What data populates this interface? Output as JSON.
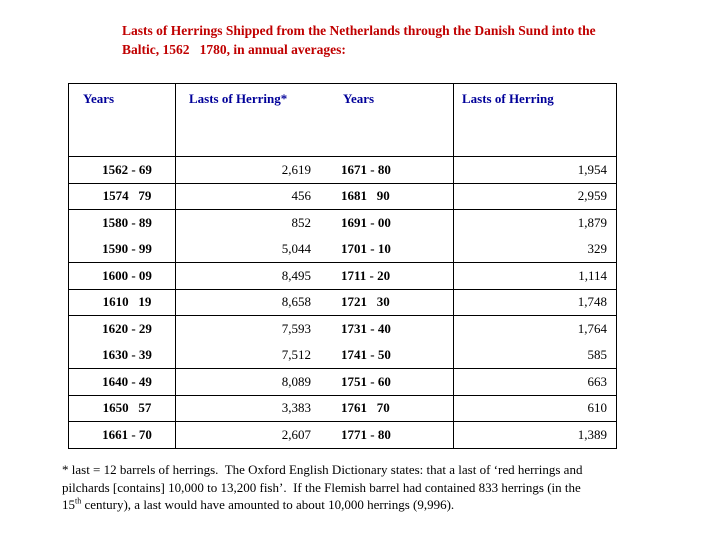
{
  "title": {
    "line1": "Lasts of Herrings Shipped from the Netherlands through the Danish Sund into the",
    "line2": "Baltic, 1562   1780, in annual averages:"
  },
  "colors": {
    "title_red": "#c00000",
    "header_blue": "#000099",
    "table_border": "#000000"
  },
  "table": {
    "headers": [
      "Years",
      "Lasts of Herring*",
      "Years",
      "Lasts of Herring"
    ],
    "rows": [
      {
        "years1": "1562 - 69",
        "value1": "2,619",
        "years2": "1671 - 80",
        "value2": "1,954",
        "line_above": true
      },
      {
        "years1": "1574   79",
        "value1": "456",
        "years2": "1681   90",
        "value2": "2,959",
        "line_above": true
      },
      {
        "years1": "1580 - 89",
        "value1": "852",
        "years2": "1691 - 00",
        "value2": "1,879",
        "line_above": true
      },
      {
        "years1": "1590 - 99",
        "value1": "5,044",
        "years2": "1701 - 10",
        "value2": "329",
        "line_above": false
      },
      {
        "years1": "1600 - 09",
        "value1": "8,495",
        "years2": "1711 - 20",
        "value2": "1,114",
        "line_above": true
      },
      {
        "years1": "1610   19",
        "value1": "8,658",
        "years2": "1721   30",
        "value2": "1,748",
        "line_above": true
      },
      {
        "years1": "1620 - 29",
        "value1": "7,593",
        "years2": "1731 - 40",
        "value2": "1,764",
        "line_above": true
      },
      {
        "years1": "1630 - 39",
        "value1": "7,512",
        "years2": "1741 - 50",
        "value2": "585",
        "line_above": false
      },
      {
        "years1": "1640 - 49",
        "value1": "8,089",
        "years2": "1751 - 60",
        "value2": "663",
        "line_above": true
      },
      {
        "years1": "1650   57",
        "value1": "3,383",
        "years2": "1761   70",
        "value2": "610",
        "line_above": true
      },
      {
        "years1": "1661 - 70",
        "value1": "2,607",
        "years2": "1771 - 80",
        "value2": "1,389",
        "line_above": true
      }
    ]
  },
  "footnote": {
    "line1": "* last = 12 barrels of herrings.  The Oxford English Dictionary states: that a last of ‘red herrings and",
    "line2": "pilchards [contains] 10,000 to 13,200 fish’.  If the Flemish barrel had contained 833 herrings (in the",
    "line3_prefix": "15",
    "line3_sup": "th",
    "line3_rest": " century), a last would have amounted to about 10,000 herrings (9,996)."
  }
}
